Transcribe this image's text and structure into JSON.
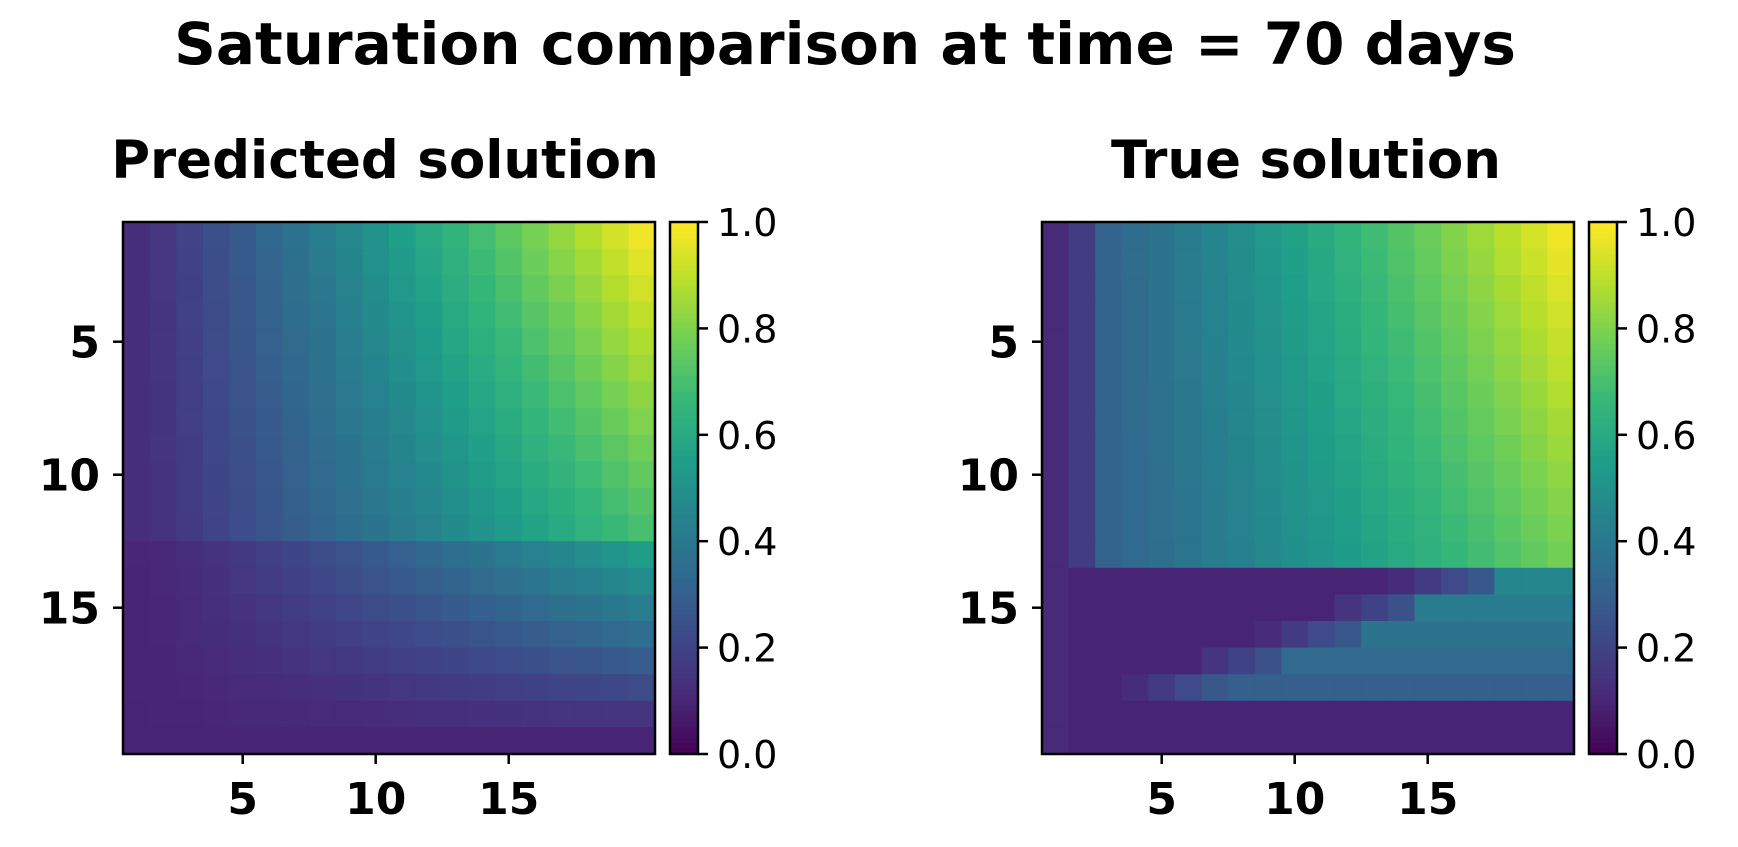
{
  "figure": {
    "title": "Saturation comparison at time = 70 days"
  },
  "colormap": {
    "name": "viridis",
    "stops": [
      "#440154",
      "#482878",
      "#3e4989",
      "#31688e",
      "#26828e",
      "#1f9e89",
      "#35b779",
      "#6ece58",
      "#b5de2b",
      "#fde725"
    ]
  },
  "chart_data": [
    {
      "type": "heatmap",
      "title": "Predicted solution",
      "grid_size": 20,
      "x_ticks": [
        5,
        10,
        15
      ],
      "y_ticks": [
        5,
        10,
        15
      ],
      "colorbar_range": [
        0.0,
        1.0
      ],
      "colorbar_ticks": [
        "0.0",
        "0.2",
        "0.4",
        "0.6",
        "0.8",
        "1.0"
      ],
      "model": "predicted",
      "values_description_rows_top_to_bottom": "rows 1-13 rise from ~0.12 at column 1 to ~0.98 at column 20; rows 14-20 transition to low values ~0.1 on left rising to ~0.45 at right"
    },
    {
      "type": "heatmap",
      "title": "True solution",
      "grid_size": 20,
      "x_ticks": [
        5,
        10,
        15
      ],
      "y_ticks": [
        5,
        10,
        15
      ],
      "colorbar_range": [
        0.0,
        1.0
      ],
      "colorbar_ticks": [
        "0.0",
        "0.2",
        "0.4",
        "0.6",
        "0.8",
        "1.0"
      ],
      "model": "true",
      "values_description_rows_top_to_bottom": "columns 1-2 low (~0.1); rows 1-13 from column 3 rise from ~0.35 to ~0.98; front below row 13 drops to ~0.1 with smaller gradient"
    }
  ]
}
